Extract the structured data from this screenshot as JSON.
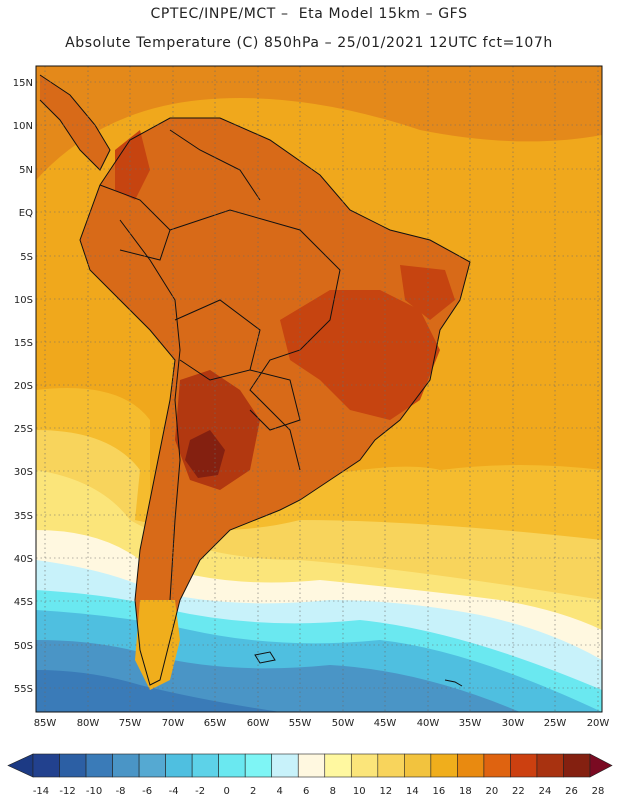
{
  "header": {
    "line1": "CPTEC/INPE/MCT –  Eta Model 15km – GFS",
    "line2": "Absolute Temperature (C) 850hPa – 25/01/2021 12UTC fct=107h"
  },
  "map": {
    "lat_labels": [
      "15N",
      "10N",
      "5N",
      "EQ",
      "5S",
      "10S",
      "15S",
      "20S",
      "25S",
      "30S",
      "35S",
      "40S",
      "45S",
      "50S",
      "55S"
    ],
    "lon_labels": [
      "85W",
      "80W",
      "75W",
      "70W",
      "65W",
      "60W",
      "55W",
      "50W",
      "45W",
      "40W",
      "35W",
      "30W",
      "25W",
      "20W"
    ],
    "ocean_color": "#f0a81c",
    "land_color": "#d86a18"
  },
  "colorbar": {
    "labels": [
      "-14",
      "-12",
      "-10",
      "-8",
      "-6",
      "-4",
      "-2",
      "0",
      "2",
      "4",
      "6",
      "8",
      "10",
      "12",
      "14",
      "16",
      "18",
      "20",
      "22",
      "24",
      "26",
      "28"
    ],
    "colors": [
      "#22418e",
      "#2c5fa4",
      "#3a7bb8",
      "#4a95c6",
      "#55a9d2",
      "#4fbfe0",
      "#5dd2e8",
      "#6ae8f0",
      "#7ef5f5",
      "#c8f2fa",
      "#fff8e0",
      "#fff8a0",
      "#fbe57a",
      "#f8d45c",
      "#f2c33e",
      "#f0ae1c",
      "#e98a10",
      "#df6310",
      "#cc4010",
      "#a83210",
      "#842010"
    ],
    "low_arrow_color": "#1c3a84",
    "high_arrow_color": "#7a0a22"
  }
}
